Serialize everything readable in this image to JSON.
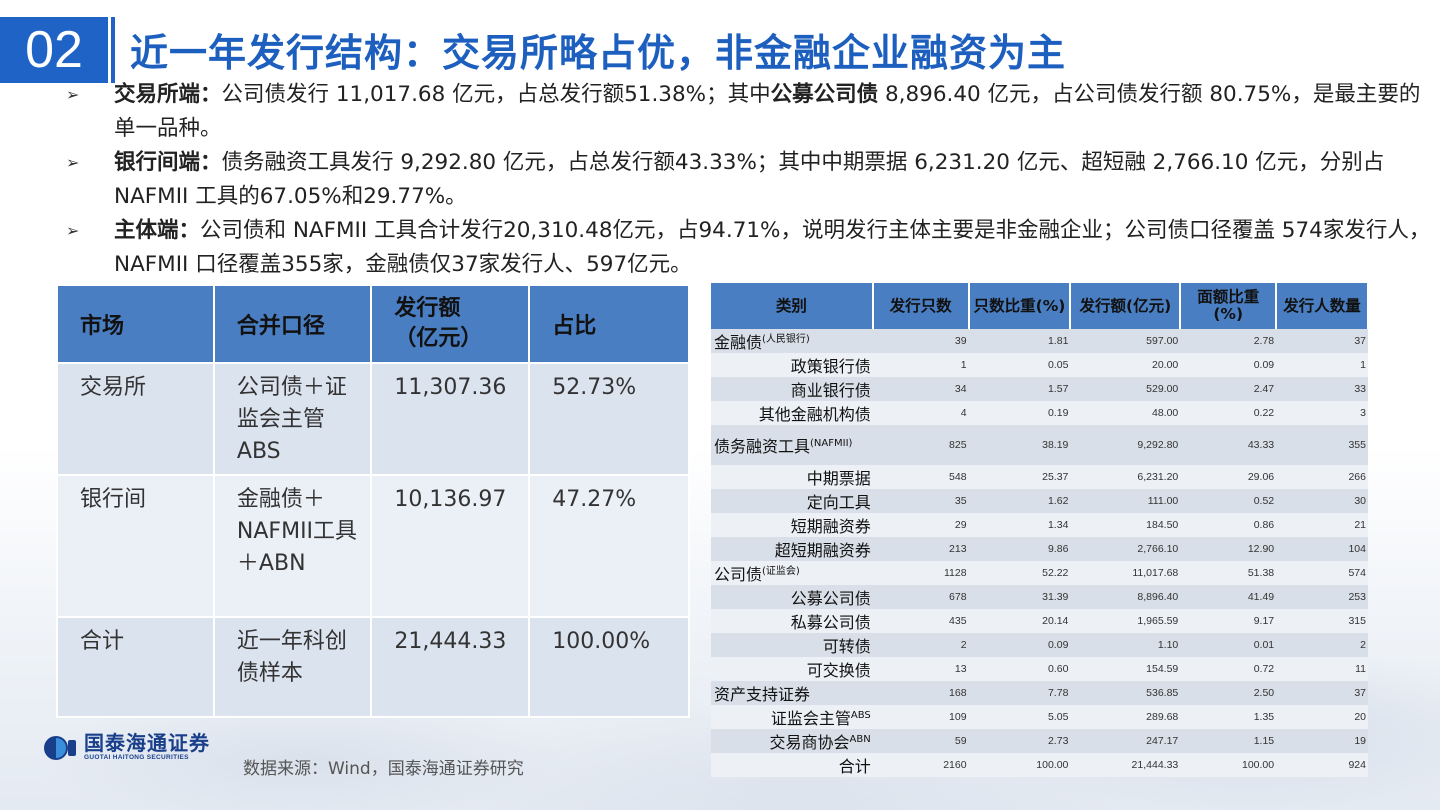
{
  "header": {
    "section_number": "02",
    "title": "近一年发行结构：交易所略占优，非金融企业融资为主"
  },
  "bullets": [
    {
      "label": "交易所端：",
      "text_a": "公司债发行 11,017.68 亿元，占总发行额51.38%；其中",
      "bold_b": "公募公司债",
      "text_c": " 8,896.40 亿元，占公司债发行额 80.75%，是最主要的单一品种。"
    },
    {
      "label": "银行间端：",
      "text_a": "债务融资工具发行 9,292.80 亿元，占总发行额43.33%；其中中期票据 6,231.20 亿元、超短融 2,766.10 亿元，分别占 NAFMII 工具的67.05%和29.77%。",
      "bold_b": "",
      "text_c": ""
    },
    {
      "label": "主体端：",
      "text_a": "公司债和 NAFMII 工具合计发行20,310.48亿元，占94.71%，说明发行主体主要是非金融企业；公司债口径覆盖 574家发行人，NAFMII 口径覆盖355家，金融债仅37家发行人、597亿元。",
      "bold_b": "",
      "text_c": ""
    }
  ],
  "left_table": {
    "headers": [
      "市场",
      "合并口径",
      "发行额\n（亿元）",
      "占比"
    ],
    "rows": [
      [
        "交易所",
        "公司债＋证监会主管ABS",
        "11,307.36",
        "52.73%"
      ],
      [
        "银行间",
        "金融债＋NAFMII工具＋ABN",
        "10,136.97",
        "47.27%"
      ],
      [
        "合计",
        "近一年科创债样本",
        "21,444.33",
        "100.00%"
      ]
    ]
  },
  "right_table": {
    "headers": [
      "类别",
      "发行只数",
      "只数比重(%)",
      "发行额(亿元)",
      "面额比重(%)",
      "发行人数量"
    ],
    "rows": [
      {
        "cat": "金融债",
        "sup": "(人民银行)",
        "lvl": 0,
        "v": [
          "39",
          "1.81",
          "597.00",
          "2.78",
          "37"
        ]
      },
      {
        "cat": "政策银行债",
        "sup": "",
        "lvl": 1,
        "v": [
          "1",
          "0.05",
          "20.00",
          "0.09",
          "1"
        ]
      },
      {
        "cat": "商业银行债",
        "sup": "",
        "lvl": 1,
        "v": [
          "34",
          "1.57",
          "529.00",
          "2.47",
          "33"
        ]
      },
      {
        "cat": "其他金融机构债",
        "sup": "",
        "lvl": 1,
        "v": [
          "4",
          "0.19",
          "48.00",
          "0.22",
          "3"
        ]
      },
      {
        "cat": "债务融资工具",
        "sup": "(NAFMII)",
        "lvl": 0,
        "tall": true,
        "v": [
          "825",
          "38.19",
          "9,292.80",
          "43.33",
          "355"
        ]
      },
      {
        "cat": "中期票据",
        "sup": "",
        "lvl": 1,
        "v": [
          "548",
          "25.37",
          "6,231.20",
          "29.06",
          "266"
        ]
      },
      {
        "cat": "定向工具",
        "sup": "",
        "lvl": 1,
        "v": [
          "35",
          "1.62",
          "111.00",
          "0.52",
          "30"
        ]
      },
      {
        "cat": "短期融资券",
        "sup": "",
        "lvl": 1,
        "v": [
          "29",
          "1.34",
          "184.50",
          "0.86",
          "21"
        ]
      },
      {
        "cat": "超短期融资券",
        "sup": "",
        "lvl": 1,
        "v": [
          "213",
          "9.86",
          "2,766.10",
          "12.90",
          "104"
        ]
      },
      {
        "cat": "公司债",
        "sup": "(证监会)",
        "lvl": 0,
        "v": [
          "1128",
          "52.22",
          "11,017.68",
          "51.38",
          "574"
        ]
      },
      {
        "cat": "公募公司债",
        "sup": "",
        "lvl": 1,
        "v": [
          "678",
          "31.39",
          "8,896.40",
          "41.49",
          "253"
        ]
      },
      {
        "cat": "私募公司债",
        "sup": "",
        "lvl": 1,
        "v": [
          "435",
          "20.14",
          "1,965.59",
          "9.17",
          "315"
        ]
      },
      {
        "cat": "可转债",
        "sup": "",
        "lvl": 1,
        "v": [
          "2",
          "0.09",
          "1.10",
          "0.01",
          "2"
        ]
      },
      {
        "cat": "可交换债",
        "sup": "",
        "lvl": 1,
        "v": [
          "13",
          "0.60",
          "154.59",
          "0.72",
          "11"
        ]
      },
      {
        "cat": "资产支持证券",
        "sup": "",
        "lvl": 0,
        "v": [
          "168",
          "7.78",
          "536.85",
          "2.50",
          "37"
        ]
      },
      {
        "cat": "证监会主管",
        "sup": "ABS",
        "lvl": 1,
        "v": [
          "109",
          "5.05",
          "289.68",
          "1.35",
          "20"
        ]
      },
      {
        "cat": "交易商协会",
        "sup": "ABN",
        "lvl": 1,
        "v": [
          "59",
          "2.73",
          "247.17",
          "1.15",
          "19"
        ]
      },
      {
        "cat": "合计",
        "sup": "",
        "lvl": 1,
        "v": [
          "2160",
          "100.00",
          "21,444.33",
          "100.00",
          "924"
        ]
      }
    ]
  },
  "footer": {
    "logo_cn": "国泰海通证券",
    "logo_en": "GUOTAI HAITONG SECURITIES",
    "source": "数据来源：Wind，国泰海通证券研究"
  },
  "colors": {
    "accent": "#1f63c6",
    "table_header": "#4a7ec2",
    "row_dark": "#dbe3ef",
    "row_light": "#ebeff6"
  },
  "icons": {
    "bullet": "arrow-right-icon",
    "logo": "guotai-haitong-logo-icon"
  }
}
